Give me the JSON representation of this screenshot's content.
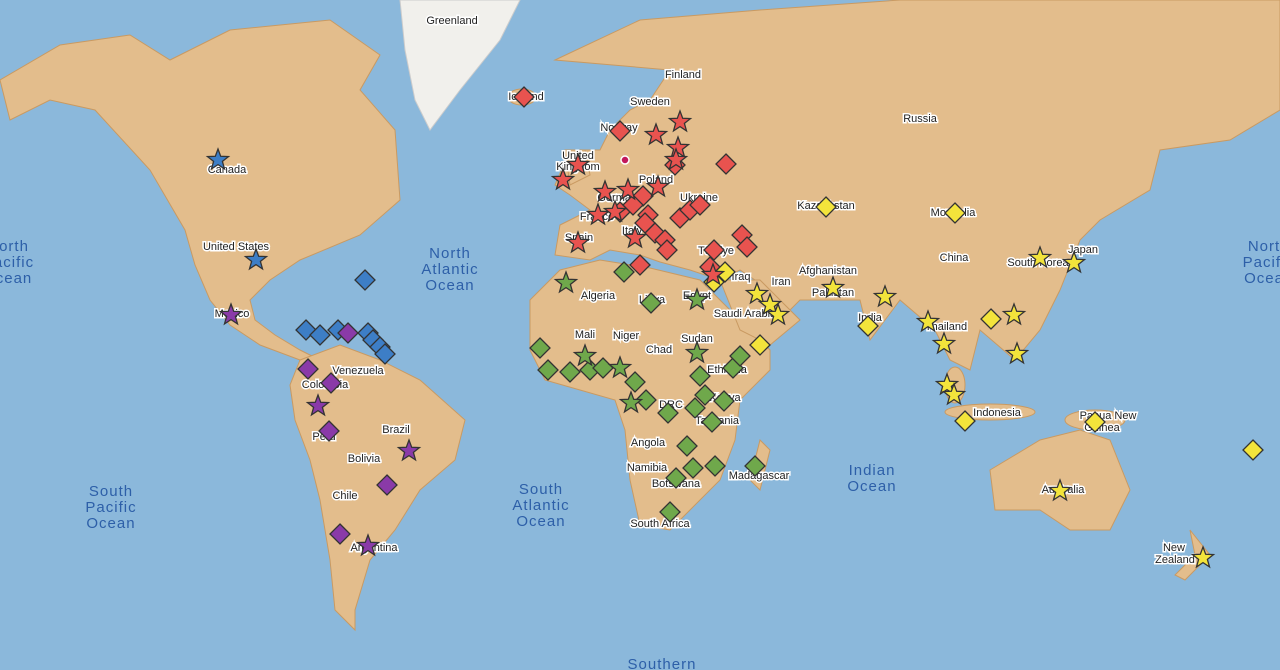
{
  "labels": [
    "Greenland",
    "Finland",
    "Iceland",
    "Sweden",
    "Norway",
    "Russia",
    "United",
    "Kingdom",
    "Canada",
    "Poland",
    "Germany",
    "Ukraine",
    "France",
    "Italy",
    "Spain",
    "Kazakhstan",
    "Mongolia",
    "United States",
    "Türkiye",
    "Iraq",
    "Afghanistan",
    "China",
    "South Korea",
    "Japan",
    "Iran",
    "Pakistan",
    "Mexico",
    "Algeria",
    "Libya",
    "Egypt",
    "Saudi Arabia",
    "India",
    "Thailand",
    "Mali",
    "Niger",
    "Chad",
    "Sudan",
    "Venezuela",
    "Colombia",
    "Ethiopia",
    "DRC",
    "Kenya",
    "Tanzania",
    "Peru",
    "Brazil",
    "Bolivia",
    "Angola",
    "Namibia",
    "Botswana",
    "Madagascar",
    "Indonesia",
    "Papua New",
    "Guinea",
    "Chile",
    "Argentina",
    "South Africa",
    "Australia",
    "New",
    "Zealand"
  ],
  "oceans": [
    [
      "North",
      "Atlantic",
      "Ocean"
    ],
    [
      "orth",
      "acific",
      "cean"
    ],
    [
      "Nort",
      "Pacifi",
      "Ocea"
    ],
    [
      "South",
      "Pacific",
      "Ocean"
    ],
    [
      "South",
      "Atlantic",
      "Ocean"
    ],
    [
      "Indian",
      "Ocean"
    ],
    [
      "Southern"
    ]
  ]
}
